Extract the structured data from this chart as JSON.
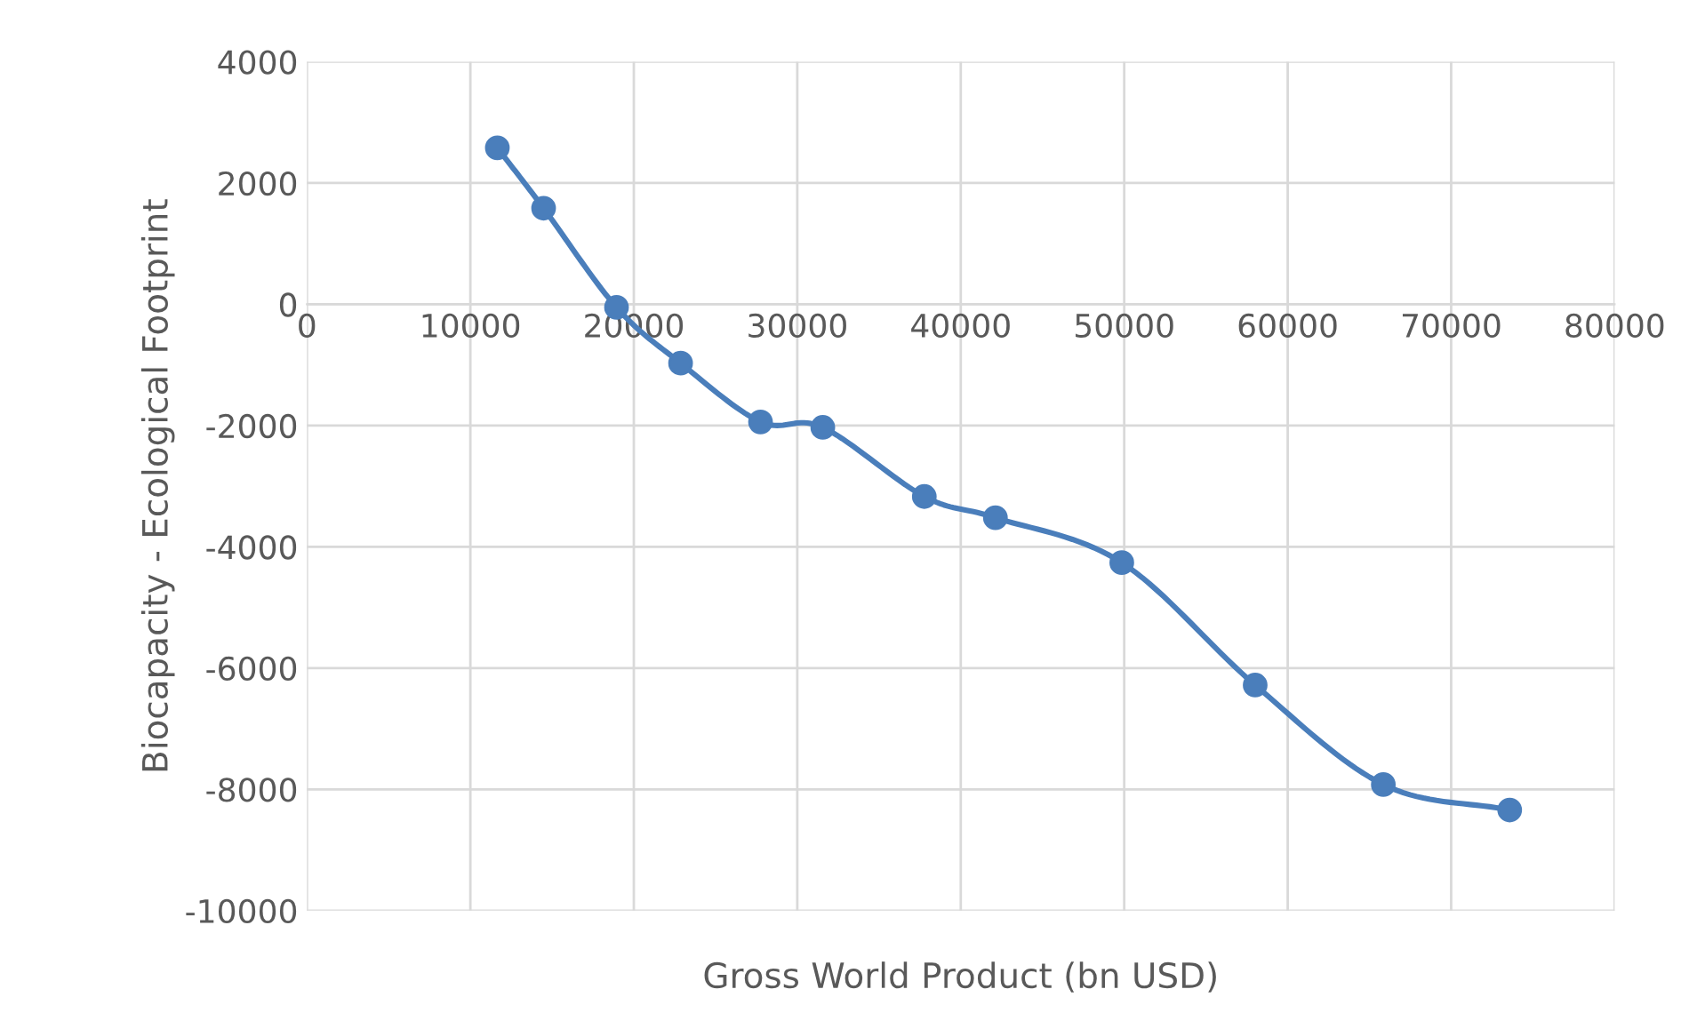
{
  "chart_data": {
    "type": "line",
    "xlabel": "Gross World Product (bn USD)",
    "ylabel": "Biocapacity - Ecological Footprint",
    "x": [
      11650,
      14480,
      18940,
      22860,
      27750,
      31560,
      37770,
      42120,
      49850,
      58010,
      65850,
      73580
    ],
    "series": [
      {
        "color": "#4a7ebb",
        "values": [
          2580,
          1585,
          -50,
          -970,
          -1940,
          -2030,
          -3170,
          -3520,
          -4260,
          -6280,
          -7920,
          -8340
        ]
      }
    ],
    "xlim": [
      0,
      80000
    ],
    "xticks": [
      0,
      10000,
      20000,
      30000,
      40000,
      50000,
      60000,
      70000,
      80000
    ],
    "ylim": [
      -10000,
      4000
    ],
    "yticks": [
      -10000,
      -8000,
      -6000,
      -4000,
      -2000,
      0,
      2000,
      4000
    ],
    "grid": true,
    "marker": "circle",
    "line_style": "solid",
    "legend": false
  }
}
